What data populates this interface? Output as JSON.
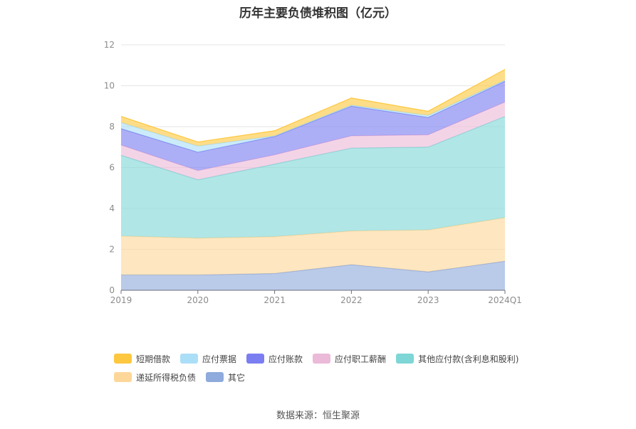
{
  "chart_data": {
    "type": "area",
    "stacked": true,
    "title": "历年主要负债堆积图（亿元）",
    "categories": [
      "2019",
      "2020",
      "2021",
      "2022",
      "2023",
      "2024Q1"
    ],
    "ylim": [
      0,
      12
    ],
    "yticks": [
      "0",
      "2",
      "4",
      "6",
      "8",
      "10",
      "12"
    ],
    "grid": true,
    "legend_position": "bottom",
    "series": [
      {
        "name": "其它",
        "color": "#8faadc",
        "values": [
          0.75,
          0.75,
          0.82,
          1.25,
          0.9,
          1.42
        ]
      },
      {
        "name": "递延所得税负债",
        "color": "#fdd79a",
        "values": [
          1.9,
          1.8,
          1.8,
          1.65,
          2.05,
          2.13
        ]
      },
      {
        "name": "其他应付款(含利息和股利)",
        "color": "#7fd6d6",
        "values": [
          3.95,
          2.85,
          3.55,
          4.05,
          4.05,
          4.95
        ]
      },
      {
        "name": "应付职工薪酬",
        "color": "#ebbad9",
        "values": [
          0.5,
          0.45,
          0.45,
          0.6,
          0.6,
          0.7
        ]
      },
      {
        "name": "应付账款",
        "color": "#7b7ef0",
        "values": [
          0.8,
          0.9,
          0.9,
          1.45,
          0.85,
          1.02
        ]
      },
      {
        "name": "应付票据",
        "color": "#abdff7",
        "values": [
          0.3,
          0.3,
          0.03,
          0.05,
          0.1,
          0.05
        ]
      },
      {
        "name": "短期借款",
        "color": "#fdc83f",
        "values": [
          0.3,
          0.2,
          0.25,
          0.35,
          0.2,
          0.53
        ]
      }
    ],
    "legend_order": [
      "短期借款",
      "应付票据",
      "应付账款",
      "应付职工薪酬",
      "其他应付款(含利息和股利)",
      "递延所得税负债",
      "其它"
    ]
  },
  "source": "数据来源：恒生聚源"
}
